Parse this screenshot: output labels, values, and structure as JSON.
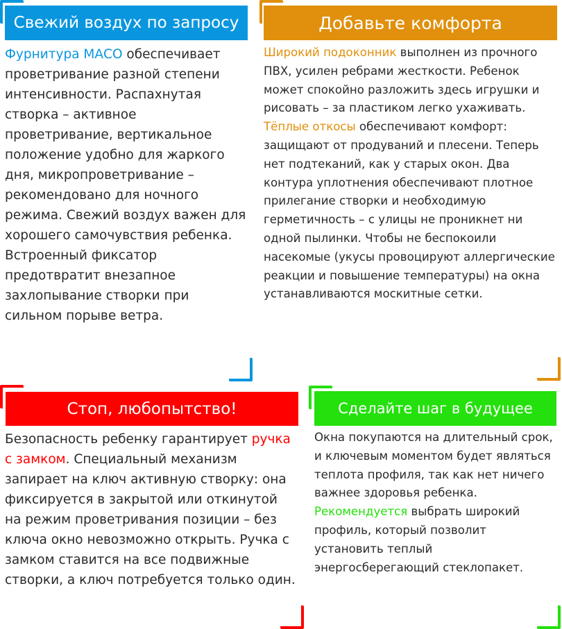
{
  "colors": {
    "blue": "#0a96de",
    "orange": "#e0900c",
    "red": "#ff0000",
    "green": "#24e00c"
  },
  "blocks": [
    {
      "title": "Свежий воздух по запросу",
      "parts": [
        {
          "text": "Фурнитура МАСО",
          "hl": true
        },
        {
          "text": " обеспечивает проветривание разной степени интенсивности. Распахнутая створка – активное проветривание, вертикальное положение удобно для жаркого дня, микропроветривание – рекомендовано для ночного режима. Свежий воздух важен для хорошего самочувствия ребенка. Встроенный фиксатор предотвратит внезапное захлопывание створки при сильном порыве ветра."
        }
      ]
    },
    {
      "title": "Добавьте комфорта",
      "parts": [
        {
          "text": "Широкий подоконник",
          "hl": true
        },
        {
          "text": " выполнен из прочного ПВХ, усилен ребрами жесткости. Ребенок может спокойно разложить здесь игрушки и рисовать – за пластиком легко ухаживать. "
        },
        {
          "text": "Тёплые откосы",
          "hl": true
        },
        {
          "text": " обеспечивают комфорт: защищают от продуваний и плесени. Теперь нет подтеканий, как у старых окон. Два контура уплотнения обеспечивают плотное прилегание створки и необходимую герметичность – с улицы не проникнет ни одной пылинки. Чтобы не беспокоили насекомые (укусы провоцируют аллергические реакции и повышение температуры) на окна устанавливаются москитные сетки."
        }
      ]
    },
    {
      "title": "Стоп, любопытство!",
      "parts": [
        {
          "text": "Безопасность ребенку гарантирует "
        },
        {
          "text": "ручка с замком",
          "hl": true
        },
        {
          "text": ". Специальный механизм запирает на ключ активную створку: она фиксируется в закрытой или откинутой на режим проветривания позиции – без ключа окно невозможно открыть. Ручка с замком ставится на все подвижные створки, а ключ потребуется только один."
        }
      ]
    },
    {
      "title": "Сделайте шаг в будущее",
      "parts": [
        {
          "text": "Окна покупаются на длительный срок, и ключевым моментом будет являться теплота профиля, так как нет ничего важнее здоровья ребенка. "
        },
        {
          "text": "Рекомендуется",
          "hl": true
        },
        {
          "text": " выбрать широкий профиль, который позволит установить теплый энергосберегающий стеклопакет."
        }
      ]
    }
  ]
}
